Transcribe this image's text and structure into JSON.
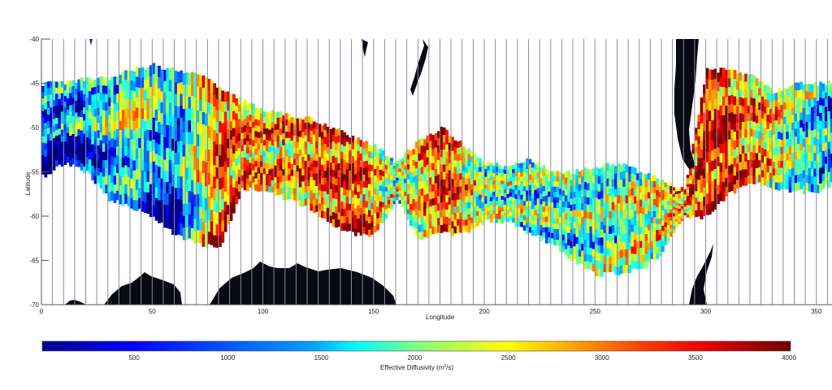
{
  "chart_data": {
    "type": "heatmap",
    "title": "",
    "xlabel": "Longitude",
    "ylabel": "Latitude",
    "xlim": [
      0,
      360
    ],
    "ylim": [
      -70,
      -40
    ],
    "xticks": [
      0,
      50,
      100,
      150,
      200,
      250,
      300,
      350
    ],
    "yticks": [
      -40,
      -45,
      -50,
      -55,
      -60,
      -65,
      -70
    ],
    "grid": "vertical lines every 5 degrees longitude",
    "colorbar": {
      "label": "Effective Diffusivity (m²/s)",
      "label_text": "Effective Diffusivity (m",
      "label_sup": "2",
      "label_tail": "/s)",
      "range": [
        0,
        4000
      ],
      "ticks": [
        500,
        1000,
        1500,
        2000,
        2500,
        3000,
        3500,
        4000
      ],
      "colormap": "jet",
      "position": "bottom",
      "colors": [
        "#00008f",
        "#0000ff",
        "#0080ff",
        "#00ffff",
        "#80ff80",
        "#ffff00",
        "#ff8000",
        "#ff0000",
        "#800000"
      ]
    },
    "band": {
      "description": "Effective diffusivity band tracing Antarctic Circumpolar Current; northern and southern latitude bounds per longitude",
      "lon": [
        0,
        10,
        20,
        30,
        40,
        50,
        60,
        70,
        80,
        90,
        100,
        110,
        120,
        130,
        140,
        150,
        160,
        170,
        180,
        190,
        200,
        210,
        220,
        230,
        240,
        250,
        260,
        270,
        280,
        290,
        300,
        310,
        320,
        330,
        340,
        350,
        360
      ],
      "north": [
        -45,
        -45,
        -44.5,
        -44.5,
        -43.5,
        -43,
        -43.5,
        -44,
        -45.5,
        -47,
        -48,
        -48.5,
        -49,
        -50,
        -51,
        -52,
        -54,
        -51.5,
        -50,
        -52,
        -54,
        -54.5,
        -53.5,
        -55,
        -55,
        -54.5,
        -54,
        -55,
        -56,
        -57,
        -43.5,
        -43.5,
        -44,
        -46,
        -45,
        -45,
        -45
      ],
      "south": [
        -55.5,
        -54,
        -55,
        -58,
        -59,
        -60,
        -62,
        -63,
        -63.5,
        -57,
        -57,
        -58,
        -59,
        -61,
        -62,
        -62,
        -58,
        -62.5,
        -62,
        -62,
        -60.5,
        -60.5,
        -62,
        -63,
        -65,
        -66.5,
        -66.5,
        -66,
        -64,
        -60,
        -60,
        -57.5,
        -56,
        -57,
        -57,
        -57.5,
        -55.5
      ]
    },
    "dominant_values": {
      "description": "Approximate dominant effective diffusivity (m2/s) by longitude sector",
      "lon": [
        0,
        20,
        40,
        60,
        80,
        100,
        120,
        140,
        160,
        180,
        200,
        220,
        240,
        260,
        280,
        300,
        320,
        340,
        360
      ],
      "value": [
        900,
        1200,
        2200,
        1000,
        3200,
        2800,
        3000,
        3400,
        2000,
        3300,
        2000,
        1800,
        1700,
        1900,
        2400,
        3600,
        3000,
        1800,
        1000
      ]
    },
    "landmasses": [
      "Antarctica (south, lon 10-165)",
      "Tasmania (lon ~147)",
      "New Zealand (lon ~168-175)",
      "South America (lon ~288-295)",
      "Antarctic Peninsula (lon ~295-305)"
    ]
  }
}
